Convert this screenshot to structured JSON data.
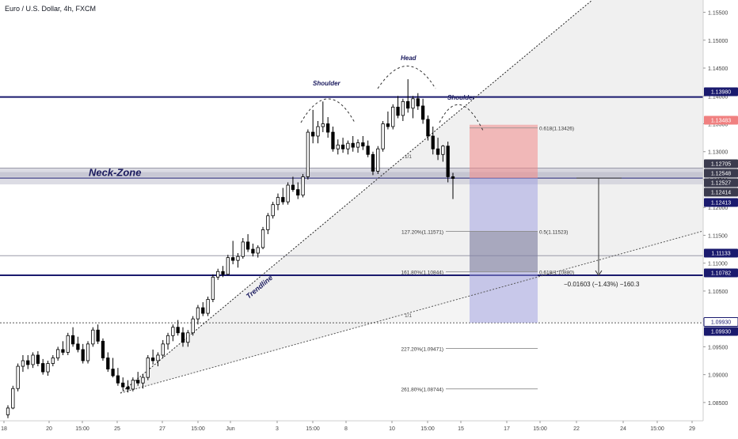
{
  "header": {
    "symbol_title": "Euro / U.S. Dollar, 4h, FXCM"
  },
  "chart_data": {
    "type": "candlestick",
    "title": "Euro / U.S. Dollar, 4h, FXCM",
    "ylim": [
      1.082,
      1.1565
    ],
    "price_ticks": [
      "1.15500",
      "1.15000",
      "1.14500",
      "1.14000",
      "1.13500",
      "1.13000",
      "1.12500",
      "1.12000",
      "1.11500",
      "1.11000",
      "1.10500",
      "1.10000",
      "1.09500",
      "1.09000",
      "1.08500"
    ],
    "time_ticks": [
      "18",
      "20",
      "15:00",
      "25",
      "27",
      "15:00",
      "Jun",
      "3",
      "15:00",
      "8",
      "10",
      "15:00",
      "15",
      "17",
      "15:00",
      "22",
      "24",
      "15:00",
      "29"
    ],
    "price_tags": [
      {
        "label": "1.13980",
        "style": "navy"
      },
      {
        "label": "1.13483",
        "style": "red"
      },
      {
        "label": "1.12705",
        "style": "dark"
      },
      {
        "label": "1.12548",
        "style": "dark"
      },
      {
        "label": "1.12527",
        "style": "dark"
      },
      {
        "label": "1.12414",
        "style": "dark"
      },
      {
        "label": "1.12413",
        "style": "navy"
      },
      {
        "label": "1.11133",
        "style": "navy"
      },
      {
        "label": "1.10782",
        "style": "navy"
      },
      {
        "label": "1.09930",
        "style": "outline"
      },
      {
        "label": "1.09930",
        "style": "navy"
      }
    ],
    "ohlc": [
      [
        1.0828,
        1.0845,
        1.0822,
        1.084
      ],
      [
        1.084,
        1.088,
        1.0838,
        1.0875
      ],
      [
        1.0875,
        1.092,
        1.087,
        1.0915
      ],
      [
        1.0915,
        1.0935,
        1.0905,
        1.0925
      ],
      [
        1.0925,
        1.0935,
        1.091,
        1.0918
      ],
      [
        1.0918,
        1.094,
        1.0912,
        1.0935
      ],
      [
        1.0935,
        1.0942,
        1.0915,
        1.092
      ],
      [
        1.092,
        1.0928,
        1.09,
        1.0905
      ],
      [
        1.0905,
        1.0925,
        1.0898,
        1.092
      ],
      [
        1.092,
        1.0935,
        1.0915,
        1.093
      ],
      [
        1.093,
        1.095,
        1.0925,
        1.0945
      ],
      [
        1.0945,
        1.096,
        1.0935,
        1.094
      ],
      [
        1.094,
        1.0975,
        1.0935,
        1.097
      ],
      [
        1.097,
        1.0985,
        1.095,
        1.0955
      ],
      [
        1.0955,
        1.0968,
        1.094,
        1.0945
      ],
      [
        1.0945,
        1.0955,
        1.092,
        1.0925
      ],
      [
        1.0925,
        1.096,
        1.092,
        1.0955
      ],
      [
        1.0955,
        1.0985,
        1.095,
        1.098
      ],
      [
        1.098,
        1.099,
        1.0955,
        1.096
      ],
      [
        1.096,
        1.0965,
        1.0925,
        1.093
      ],
      [
        1.093,
        1.094,
        1.0905,
        1.091
      ],
      [
        1.091,
        1.093,
        1.0895,
        1.0898
      ],
      [
        1.0898,
        1.0912,
        1.088,
        1.0885
      ],
      [
        1.0885,
        1.0895,
        1.0872,
        1.0878
      ],
      [
        1.0878,
        1.089,
        1.0868,
        1.0874
      ],
      [
        1.0874,
        1.0895,
        1.087,
        1.089
      ],
      [
        1.089,
        1.0905,
        1.088,
        1.0885
      ],
      [
        1.0885,
        1.09,
        1.0875,
        1.0895
      ],
      [
        1.0895,
        1.0935,
        1.089,
        1.093
      ],
      [
        1.093,
        1.0945,
        1.0918,
        1.0925
      ],
      [
        1.0925,
        1.094,
        1.0915,
        1.0935
      ],
      [
        1.0935,
        1.0962,
        1.093,
        1.0955
      ],
      [
        1.0955,
        1.0975,
        1.0945,
        1.097
      ],
      [
        1.097,
        1.099,
        1.096,
        1.0985
      ],
      [
        1.0985,
        1.0998,
        1.097,
        1.0975
      ],
      [
        1.0975,
        1.0985,
        1.095,
        1.0958
      ],
      [
        1.0958,
        1.098,
        1.095,
        1.0975
      ],
      [
        1.0975,
        1.1005,
        1.097,
        1.1
      ],
      [
        1.1,
        1.1025,
        1.099,
        1.102
      ],
      [
        1.102,
        1.103,
        1.1005,
        1.101
      ],
      [
        1.101,
        1.104,
        1.1005,
        1.1035
      ],
      [
        1.1035,
        1.108,
        1.103,
        1.1075
      ],
      [
        1.1075,
        1.109,
        1.107,
        1.1085
      ],
      [
        1.1085,
        1.1095,
        1.1075,
        1.108
      ],
      [
        1.108,
        1.1115,
        1.1078,
        1.111
      ],
      [
        1.111,
        1.114,
        1.1098,
        1.1105
      ],
      [
        1.1105,
        1.1118,
        1.1092,
        1.1112
      ],
      [
        1.1112,
        1.1145,
        1.1108,
        1.1138
      ],
      [
        1.1138,
        1.1152,
        1.112,
        1.1125
      ],
      [
        1.1125,
        1.1135,
        1.1112,
        1.1118
      ],
      [
        1.1118,
        1.1132,
        1.111,
        1.1128
      ],
      [
        1.1128,
        1.1165,
        1.1125,
        1.116
      ],
      [
        1.116,
        1.119,
        1.1152,
        1.1185
      ],
      [
        1.1185,
        1.121,
        1.118,
        1.1205
      ],
      [
        1.1205,
        1.1225,
        1.1195,
        1.1218
      ],
      [
        1.1218,
        1.1235,
        1.1205,
        1.121
      ],
      [
        1.121,
        1.1245,
        1.1205,
        1.124
      ],
      [
        1.124,
        1.1255,
        1.1228,
        1.1232
      ],
      [
        1.1232,
        1.1245,
        1.1215,
        1.1222
      ],
      [
        1.1222,
        1.126,
        1.1218,
        1.1255
      ],
      [
        1.1255,
        1.134,
        1.125,
        1.1335
      ],
      [
        1.1335,
        1.1375,
        1.1315,
        1.1328
      ],
      [
        1.1328,
        1.1355,
        1.1315,
        1.1345
      ],
      [
        1.1345,
        1.139,
        1.1335,
        1.135
      ],
      [
        1.135,
        1.1362,
        1.1325,
        1.1335
      ],
      [
        1.1335,
        1.1345,
        1.13,
        1.1305
      ],
      [
        1.1305,
        1.1322,
        1.1295,
        1.1312
      ],
      [
        1.1312,
        1.1325,
        1.1298,
        1.1305
      ],
      [
        1.1305,
        1.132,
        1.1295,
        1.1315
      ],
      [
        1.1315,
        1.1328,
        1.13,
        1.1308
      ],
      [
        1.1308,
        1.1322,
        1.1298,
        1.1316
      ],
      [
        1.1316,
        1.1328,
        1.1303,
        1.131
      ],
      [
        1.131,
        1.132,
        1.129,
        1.1295
      ],
      [
        1.1295,
        1.13,
        1.1258,
        1.1265
      ],
      [
        1.1265,
        1.131,
        1.126,
        1.1305
      ],
      [
        1.1305,
        1.1355,
        1.13,
        1.135
      ],
      [
        1.135,
        1.1372,
        1.134,
        1.1345
      ],
      [
        1.1345,
        1.1385,
        1.134,
        1.138
      ],
      [
        1.138,
        1.14,
        1.136,
        1.1365
      ],
      [
        1.1365,
        1.1395,
        1.1355,
        1.139
      ],
      [
        1.139,
        1.143,
        1.137,
        1.1378
      ],
      [
        1.1378,
        1.14,
        1.136,
        1.1395
      ],
      [
        1.1395,
        1.1405,
        1.1375,
        1.1382
      ],
      [
        1.1382,
        1.1395,
        1.135,
        1.1358
      ],
      [
        1.1358,
        1.1365,
        1.132,
        1.1328
      ],
      [
        1.1328,
        1.1345,
        1.1295,
        1.1305
      ],
      [
        1.1305,
        1.1325,
        1.1285,
        1.1295
      ],
      [
        1.1295,
        1.1312,
        1.1282,
        1.131
      ],
      [
        1.131,
        1.1318,
        1.1245,
        1.1255
      ],
      [
        1.1255,
        1.1262,
        1.1215,
        1.1252
      ]
    ],
    "levels": [
      {
        "price": 1.1398,
        "style": "navy-thick"
      },
      {
        "price": 1.12705,
        "style": "thin"
      },
      {
        "price": 1.12527,
        "style": "navy-thin"
      },
      {
        "price": 1.11133,
        "style": "thin"
      },
      {
        "price": 1.10782,
        "style": "navy-thick"
      }
    ],
    "neck_zone": {
      "label": "Neck-Zone",
      "from": 1.12705,
      "to": 1.12413
    },
    "pattern_labels": [
      "Shoulder",
      "Head",
      "Shoulder"
    ],
    "trendline_label": "Trendline",
    "fib_labels": [
      "0.618(1.13426)",
      "127.20%(1.11571)",
      "0.5(1.11523)",
      "161.80%(1.10844)",
      "0.618(1.10880)",
      "227.20%(1.09471)",
      "261.80%(1.08744)"
    ],
    "fan_labels": [
      "1/1",
      "1/1"
    ],
    "measure_label": "−0.01603 (−1.43%) −160.3",
    "trade": {
      "entry": 1.12527,
      "stop": 1.13483,
      "target": 1.0993
    }
  }
}
